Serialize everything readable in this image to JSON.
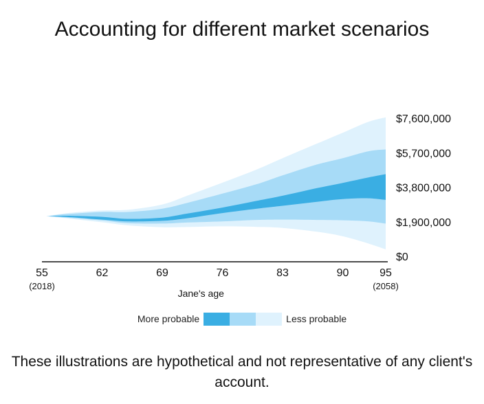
{
  "chart_data": {
    "type": "area",
    "title": "Accounting for different market scenarios",
    "xlabel": "Jane's age",
    "ylabel": "",
    "x_ticks": [
      {
        "value": 55,
        "label": "55",
        "sublabel": "(2018)"
      },
      {
        "value": 62,
        "label": "62",
        "sublabel": ""
      },
      {
        "value": 69,
        "label": "69",
        "sublabel": ""
      },
      {
        "value": 76,
        "label": "76",
        "sublabel": ""
      },
      {
        "value": 83,
        "label": "83",
        "sublabel": ""
      },
      {
        "value": 90,
        "label": "90",
        "sublabel": ""
      },
      {
        "value": 95,
        "label": "95",
        "sublabel": "(2058)"
      }
    ],
    "y_ticks": [
      {
        "value": 0,
        "label": "$0"
      },
      {
        "value": 1900000,
        "label": "$1,900,000"
      },
      {
        "value": 3800000,
        "label": "$3,800,000"
      },
      {
        "value": 5700000,
        "label": "$5,700,000"
      },
      {
        "value": 7600000,
        "label": "$7,600,000"
      }
    ],
    "xlim": [
      55,
      95
    ],
    "ylim": [
      0,
      7600000
    ],
    "grid": false,
    "y_axis_position": "right",
    "x": [
      55.5,
      58,
      62,
      65,
      69,
      72,
      76,
      80,
      83,
      87,
      90,
      93,
      95
    ],
    "series": [
      {
        "upper": [
          2200000,
          2380000,
          2520000,
          2560000,
          2850000,
          3350000,
          4050000,
          4780000,
          5400000,
          6200000,
          6800000,
          7400000,
          7650000
        ],
        "lower": [
          2200000,
          2080000,
          1870000,
          1700000,
          1600000,
          1610000,
          1650000,
          1620000,
          1560000,
          1350000,
          1100000,
          700000,
          380000
        ]
      },
      {
        "upper": [
          2200000,
          2330000,
          2440000,
          2440000,
          2620000,
          2950000,
          3450000,
          3970000,
          4450000,
          5050000,
          5400000,
          5780000,
          5880000
        ],
        "lower": [
          2200000,
          2120000,
          1970000,
          1820000,
          1800000,
          1860000,
          1920000,
          2000000,
          2020000,
          2000000,
          1980000,
          1920000,
          1800000
        ]
      },
      {
        "upper": [
          2200000,
          2230000,
          2170000,
          2060000,
          2130000,
          2360000,
          2680000,
          3050000,
          3330000,
          3750000,
          4040000,
          4340000,
          4520000
        ],
        "lower": [
          2200000,
          2160000,
          2020000,
          1920000,
          1950000,
          2100000,
          2380000,
          2620000,
          2780000,
          3000000,
          3150000,
          3190000,
          3100000
        ]
      }
    ],
    "colors": [
      "#dff2fd",
      "#a7dbf7",
      "#3aaee3"
    ],
    "axis_color": "#111111"
  },
  "legend": {
    "more_label": "More probable",
    "less_label": "Less probable",
    "swatches": [
      "#3aaee3",
      "#a7dbf7",
      "#dff2fd"
    ]
  },
  "disclaimer": "These illustrations are hypothetical and not representative of any client's account."
}
